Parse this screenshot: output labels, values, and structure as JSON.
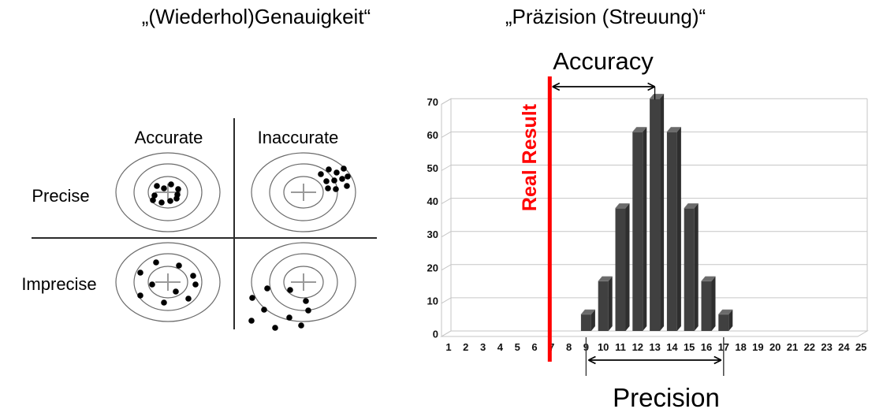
{
  "left_panel": {
    "title": "„(Wiederhol)Genauigkeit“",
    "col_headers": [
      "Accurate",
      "Inaccurate"
    ],
    "row_labels": [
      "Precise",
      "Imprecise"
    ],
    "targets": {
      "centers": [
        [
          213,
          244
        ],
        [
          385,
          244
        ],
        [
          213,
          358
        ],
        [
          385,
          358
        ]
      ],
      "radii": [
        [
          66,
          50
        ],
        [
          43,
          36
        ],
        [
          25,
          20
        ]
      ]
    },
    "dots": {
      "precise_accurate": [
        [
          199,
          236
        ],
        [
          208,
          239
        ],
        [
          217,
          234
        ],
        [
          226,
          240
        ],
        [
          196,
          248
        ],
        [
          225,
          247
        ],
        [
          194,
          254
        ],
        [
          205,
          257
        ],
        [
          216,
          255
        ],
        [
          224,
          252
        ]
      ],
      "precise_inaccurate": [
        [
          407,
          221
        ],
        [
          417,
          215
        ],
        [
          427,
          219
        ],
        [
          436,
          214
        ],
        [
          441,
          224
        ],
        [
          414,
          230
        ],
        [
          424,
          229
        ],
        [
          434,
          227
        ],
        [
          440,
          236
        ],
        [
          416,
          239
        ],
        [
          426,
          240
        ]
      ],
      "imprecise_accurate": [
        [
          198,
          333
        ],
        [
          227,
          337
        ],
        [
          178,
          346
        ],
        [
          245,
          350
        ],
        [
          193,
          361
        ],
        [
          248,
          361
        ],
        [
          223,
          370
        ],
        [
          178,
          375
        ],
        [
          239,
          379
        ],
        [
          208,
          384
        ]
      ],
      "imprecise_inaccurate": [
        [
          339,
          366
        ],
        [
          368,
          368
        ],
        [
          320,
          378
        ],
        [
          388,
          382
        ],
        [
          335,
          393
        ],
        [
          391,
          394
        ],
        [
          319,
          407
        ],
        [
          367,
          403
        ],
        [
          349,
          416
        ],
        [
          382,
          413
        ]
      ]
    }
  },
  "right_panel": {
    "title": "„Präzision (Streuung)“",
    "annotations": {
      "accuracy": "Accuracy",
      "precision": "Precision",
      "real_result": "Real Result"
    }
  },
  "chart_data": {
    "type": "bar",
    "title": "„Präzision (Streuung)“",
    "categories": [
      1,
      2,
      3,
      4,
      5,
      6,
      7,
      8,
      9,
      10,
      11,
      12,
      13,
      14,
      15,
      16,
      17,
      18,
      19,
      20,
      21,
      22,
      23,
      24,
      25
    ],
    "values": [
      0,
      0,
      0,
      0,
      0,
      0,
      0,
      0,
      5,
      15,
      37,
      60,
      70,
      60,
      37,
      15,
      5,
      0,
      0,
      0,
      0,
      0,
      0,
      0,
      0
    ],
    "yticks": [
      0,
      10,
      20,
      30,
      40,
      50,
      60,
      70
    ],
    "ylim": [
      0,
      70
    ],
    "xlabel": "",
    "ylabel": "",
    "grid": true,
    "legend": false,
    "real_result_x": 7,
    "accuracy_span": [
      7,
      13
    ],
    "precision_span": [
      9,
      17
    ]
  },
  "colors": {
    "red": "#ff0000",
    "ink": "#111111",
    "bar_front": "#404040",
    "bar_top": "#6b6b6b",
    "bar_side": "#2e2e2e",
    "grid": "#c6c6c6",
    "target_stroke": "#6b6b6b",
    "cross": "#9a9a9a",
    "divider": "#2b2b2b",
    "bracket": "#444444"
  }
}
